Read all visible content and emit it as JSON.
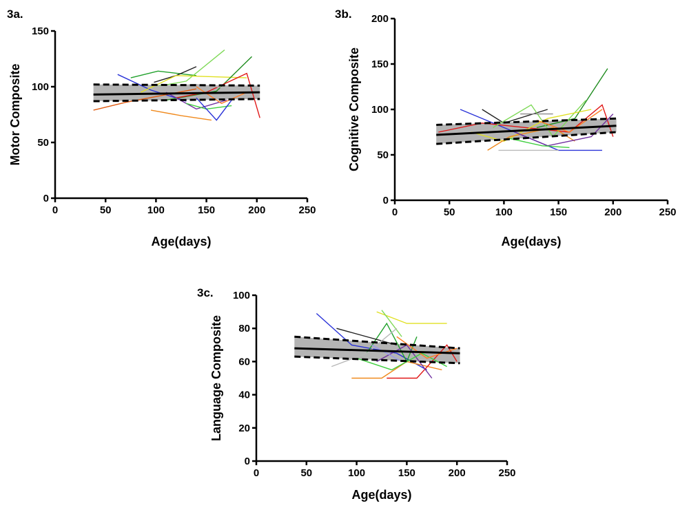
{
  "chart_data": [
    {
      "type": "line",
      "panel_label": "3a.",
      "xlabel": "Age(days)",
      "ylabel": "Motor Composite",
      "xlim": [
        0,
        250
      ],
      "ylim": [
        0,
        150
      ],
      "xticks": [
        0,
        50,
        100,
        150,
        200,
        250
      ],
      "yticks": [
        0,
        50,
        100,
        150
      ],
      "fit": {
        "x": [
          38,
          203
        ],
        "y_mean": [
          93,
          95
        ],
        "ci_upper": [
          102,
          101
        ],
        "ci_lower": [
          87,
          89
        ]
      },
      "trajectories": [
        {
          "color": "#2a33d8",
          "x": [
            62,
            95,
            130
          ],
          "y": [
            111,
            97,
            87
          ]
        },
        {
          "color": "#1fa02a",
          "x": [
            75,
            102,
            140
          ],
          "y": [
            108,
            114,
            110
          ]
        },
        {
          "color": "#202020",
          "x": [
            98,
            120,
            140
          ],
          "y": [
            104,
            110,
            118
          ]
        },
        {
          "color": "#7ed957",
          "x": [
            100,
            130,
            168
          ],
          "y": [
            100,
            105,
            133
          ]
        },
        {
          "color": "#e0e020",
          "x": [
            85,
            120,
            190
          ],
          "y": [
            95,
            110,
            108
          ]
        },
        {
          "color": "#e05a10",
          "x": [
            38,
            70,
            105,
            140
          ],
          "y": [
            79,
            86,
            92,
            98
          ]
        },
        {
          "color": "#f0891c",
          "x": [
            95,
            125,
            155
          ],
          "y": [
            79,
            74,
            70
          ]
        },
        {
          "color": "#1f8c1f",
          "x": [
            110,
            160,
            195
          ],
          "y": [
            88,
            96,
            127
          ]
        },
        {
          "color": "#e01818",
          "x": [
            120,
            150,
            190,
            203
          ],
          "y": [
            90,
            95,
            112,
            72
          ]
        },
        {
          "color": "#b8b8b8",
          "x": [
            100,
            140,
            180
          ],
          "y": [
            100,
            102,
            98
          ]
        },
        {
          "color": "#7030a0",
          "x": [
            110,
            140,
            170
          ],
          "y": [
            95,
            80,
            88
          ]
        },
        {
          "color": "#3fcf3f",
          "x": [
            130,
            150,
            175
          ],
          "y": [
            85,
            80,
            83
          ]
        },
        {
          "color": "#2a33d8",
          "x": [
            140,
            160,
            175
          ],
          "y": [
            90,
            70,
            88
          ]
        },
        {
          "color": "#ff7f27",
          "x": [
            140,
            165,
            190
          ],
          "y": [
            100,
            85,
            95
          ]
        }
      ]
    },
    {
      "type": "line",
      "panel_label": "3b.",
      "xlabel": "Age(days)",
      "ylabel": "Cognitive Composite",
      "xlim": [
        0,
        250
      ],
      "ylim": [
        0,
        200
      ],
      "xticks": [
        0,
        50,
        100,
        150,
        200,
        250
      ],
      "yticks": [
        0,
        50,
        100,
        150,
        200
      ],
      "fit": {
        "x": [
          38,
          203
        ],
        "y_mean": [
          72,
          82
        ],
        "ci_upper": [
          83,
          90
        ],
        "ci_lower": [
          62,
          75
        ]
      },
      "trajectories": [
        {
          "color": "#2a33d8",
          "x": [
            60,
            100,
            150,
            190
          ],
          "y": [
            100,
            80,
            55,
            55
          ]
        },
        {
          "color": "#202020",
          "x": [
            80,
            100,
            140
          ],
          "y": [
            100,
            85,
            100
          ]
        },
        {
          "color": "#1f8c1f",
          "x": [
            130,
            165,
            195
          ],
          "y": [
            80,
            90,
            145
          ]
        },
        {
          "color": "#e01818",
          "x": [
            40,
            80,
            120,
            160,
            190,
            200
          ],
          "y": [
            75,
            85,
            80,
            75,
            105,
            70
          ]
        },
        {
          "color": "#7ed957",
          "x": [
            90,
            125,
            145,
            175
          ],
          "y": [
            80,
            105,
            70,
            110
          ]
        },
        {
          "color": "#e0e020",
          "x": [
            70,
            100,
            140,
            180
          ],
          "y": [
            75,
            65,
            90,
            100
          ]
        },
        {
          "color": "#f0891c",
          "x": [
            85,
            105,
            145,
            165
          ],
          "y": [
            55,
            70,
            80,
            65
          ]
        },
        {
          "color": "#b8b8b8",
          "x": [
            95,
            120,
            150
          ],
          "y": [
            55,
            55,
            55
          ]
        },
        {
          "color": "#7030a0",
          "x": [
            110,
            140,
            180,
            200
          ],
          "y": [
            75,
            60,
            70,
            95
          ]
        },
        {
          "color": "#3fcf3f",
          "x": [
            105,
            135,
            160
          ],
          "y": [
            68,
            60,
            58
          ]
        },
        {
          "color": "#8a8a8a",
          "x": [
            115,
            145
          ],
          "y": [
            95,
            95
          ]
        },
        {
          "color": "#ff7f27",
          "x": [
            130,
            160,
            190
          ],
          "y": [
            88,
            75,
            100
          ]
        }
      ]
    },
    {
      "type": "line",
      "panel_label": "3c.",
      "xlabel": "Age(days)",
      "ylabel": "Language Composite",
      "xlim": [
        0,
        250
      ],
      "ylim": [
        0,
        100
      ],
      "xticks": [
        0,
        50,
        100,
        150,
        200,
        250
      ],
      "yticks": [
        0,
        20,
        40,
        60,
        80,
        100
      ],
      "fit": {
        "x": [
          38,
          203
        ],
        "y_mean": [
          68,
          65
        ],
        "ci_upper": [
          75,
          68
        ],
        "ci_lower": [
          63,
          59
        ]
      },
      "trajectories": [
        {
          "color": "#2a33d8",
          "x": [
            60,
            95,
            140,
            170
          ],
          "y": [
            89,
            70,
            65,
            55
          ]
        },
        {
          "color": "#e0e020",
          "x": [
            120,
            150,
            190
          ],
          "y": [
            90,
            83,
            83
          ]
        },
        {
          "color": "#7ed957",
          "x": [
            125,
            145
          ],
          "y": [
            91,
            75
          ]
        },
        {
          "color": "#1fa02a",
          "x": [
            110,
            130,
            150,
            160
          ],
          "y": [
            65,
            83,
            60,
            75
          ]
        },
        {
          "color": "#202020",
          "x": [
            80,
            110,
            140
          ],
          "y": [
            80,
            75,
            70
          ]
        },
        {
          "color": "#f0891c",
          "x": [
            95,
            125,
            150,
            185
          ],
          "y": [
            50,
            50,
            60,
            55
          ]
        },
        {
          "color": "#e01818",
          "x": [
            130,
            160,
            190,
            200
          ],
          "y": [
            50,
            50,
            70,
            60
          ]
        },
        {
          "color": "#b8b8b8",
          "x": [
            75,
            110,
            140
          ],
          "y": [
            57,
            65,
            80
          ]
        },
        {
          "color": "#7030a0",
          "x": [
            120,
            150,
            175
          ],
          "y": [
            60,
            70,
            50
          ]
        },
        {
          "color": "#3fcf3f",
          "x": [
            100,
            135,
            165,
            190
          ],
          "y": [
            62,
            55,
            65,
            57
          ]
        },
        {
          "color": "#ff7f27",
          "x": [
            140,
            170,
            200
          ],
          "y": [
            75,
            62,
            68
          ]
        },
        {
          "color": "#9999ee",
          "x": [
            115,
            145
          ],
          "y": [
            70,
            60
          ]
        }
      ]
    }
  ]
}
